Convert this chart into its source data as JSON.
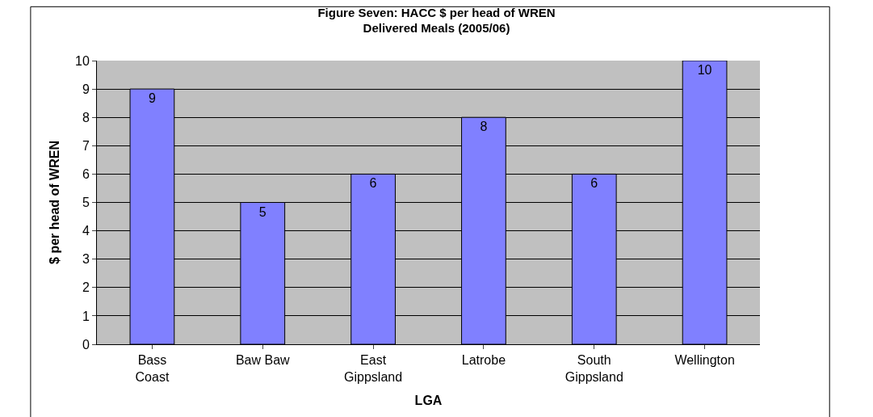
{
  "chart_data": {
    "type": "bar",
    "title": "Figure Seven: HACC $ per head of WREN\nDelivered Meals (2005/06)",
    "xlabel": "LGA",
    "ylabel": "$ per head of WREN",
    "categories": [
      "Bass\nCoast",
      "Baw Baw",
      "East\nGippsland",
      "Latrobe",
      "South\nGippsland",
      "Wellington"
    ],
    "values": [
      9,
      5,
      6,
      8,
      6,
      10
    ],
    "color": "#8080ff",
    "ylim": [
      0,
      10
    ],
    "yticks": [
      0,
      1,
      2,
      3,
      4,
      5,
      6,
      7,
      8,
      9,
      10
    ],
    "grid": "y",
    "data_labels": true
  }
}
